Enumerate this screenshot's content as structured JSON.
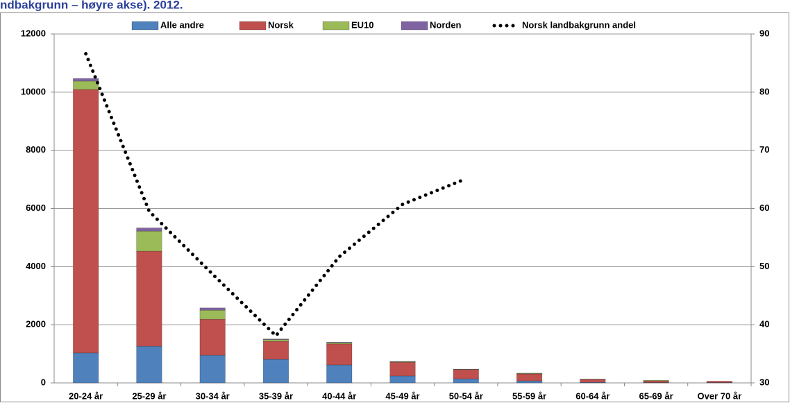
{
  "chart_data": {
    "type": "bar",
    "stacked": true,
    "title": "ndbakgrunn – høyre akse). 2012.",
    "categories": [
      "20-24 år",
      "25-29 år",
      "30-34 år",
      "35-39 år",
      "40-44 år",
      "45-49 år",
      "50-54 år",
      "55-59 år",
      "60-64 år",
      "65-69 år",
      "Over 70 år"
    ],
    "series": [
      {
        "name": "Alle andre",
        "color": "#4f81bd",
        "values": [
          1030,
          1260,
          950,
          810,
          620,
          240,
          140,
          70,
          20,
          10,
          10
        ]
      },
      {
        "name": "Norsk",
        "color": "#c0504d",
        "values": [
          9060,
          3270,
          1240,
          620,
          720,
          470,
          320,
          240,
          100,
          60,
          50
        ]
      },
      {
        "name": "EU10",
        "color": "#9bbb59",
        "values": [
          290,
          690,
          310,
          60,
          40,
          20,
          10,
          20,
          5,
          20,
          0
        ]
      },
      {
        "name": "Norden",
        "color": "#8064a2",
        "values": [
          90,
          110,
          80,
          20,
          20,
          10,
          5,
          5,
          5,
          0,
          0
        ]
      },
      {
        "name": "Norsk landbakgrunn andel",
        "color": "#000000",
        "type": "line",
        "axis": "y2",
        "values": [
          86.6,
          59.5,
          48.7,
          38.1,
          51.7,
          60.7,
          65.1,
          null,
          null,
          null,
          null
        ]
      }
    ],
    "ylim": [
      0,
      12000
    ],
    "yticks": [
      0,
      2000,
      4000,
      6000,
      8000,
      10000,
      12000
    ],
    "y2lim": [
      30,
      90
    ],
    "y2ticks": [
      30,
      40,
      50,
      60,
      70,
      80,
      90
    ],
    "grid": true,
    "legend": "top"
  }
}
